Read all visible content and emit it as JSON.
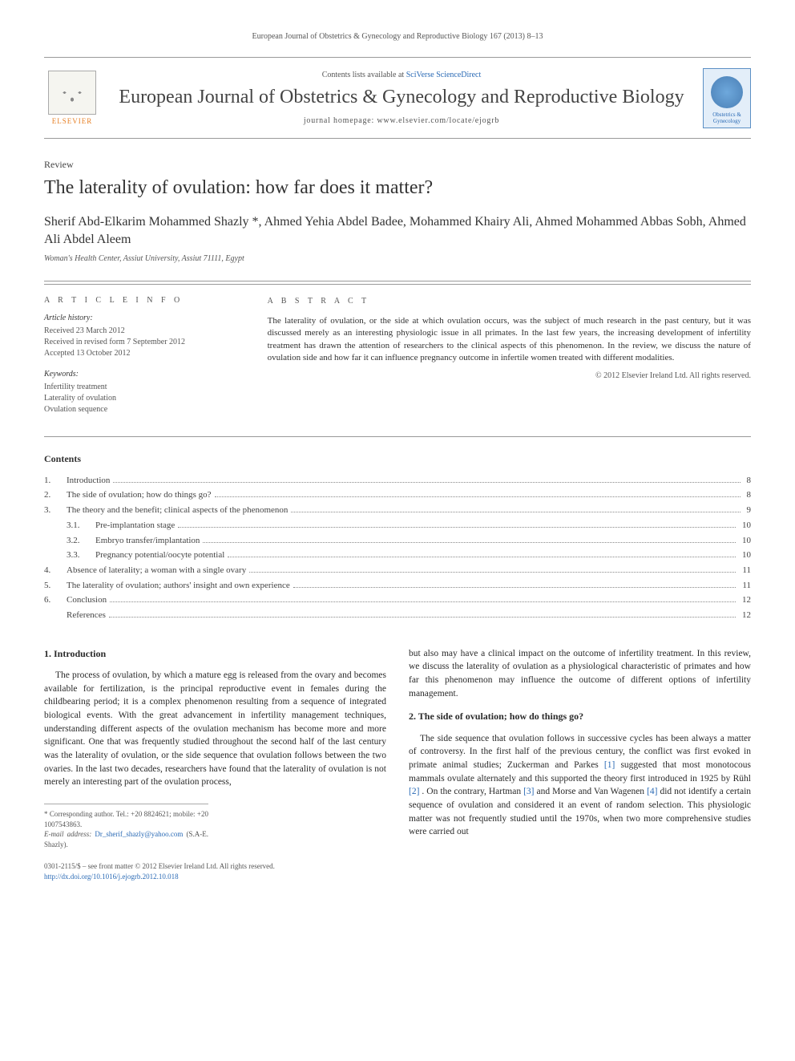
{
  "header": {
    "citation": "European Journal of Obstetrics & Gynecology and Reproductive Biology 167 (2013) 8–13"
  },
  "masthead": {
    "elsevier": "ELSEVIER",
    "contents_prefix": "Contents lists available at ",
    "contents_link": "SciVerse ScienceDirect",
    "journal_name": "European Journal of Obstetrics & Gynecology and Reproductive Biology",
    "homepage_label": "journal homepage: www.elsevier.com/locate/ejogrb",
    "side_logo_text": "Obstetrics & Gynecology"
  },
  "article": {
    "type": "Review",
    "title": "The laterality of ovulation: how far does it matter?",
    "authors": "Sherif Abd-Elkarim Mohammed Shazly *, Ahmed Yehia Abdel Badee, Mohammed Khairy Ali, Ahmed Mohammed Abbas Sobh, Ahmed Ali Abdel Aleem",
    "affiliation": "Woman's Health Center, Assiut University, Assiut 71111, Egypt"
  },
  "info": {
    "heading": "A R T I C L E   I N F O",
    "history_heading": "Article history:",
    "received": "Received 23 March 2012",
    "revised": "Received in revised form 7 September 2012",
    "accepted": "Accepted 13 October 2012",
    "keywords_heading": "Keywords:",
    "kw1": "Infertility treatment",
    "kw2": "Laterality of ovulation",
    "kw3": "Ovulation sequence"
  },
  "abstract": {
    "heading": "A B S T R A C T",
    "text": "The laterality of ovulation, or the side at which ovulation occurs, was the subject of much research in the past century, but it was discussed merely as an interesting physiologic issue in all primates. In the last few years, the increasing development of infertility treatment has drawn the attention of researchers to the clinical aspects of this phenomenon. In the review, we discuss the nature of ovulation side and how far it can influence pregnancy outcome in infertile women treated with different modalities.",
    "copyright": "© 2012 Elsevier Ireland Ltd. All rights reserved."
  },
  "contents": {
    "title": "Contents",
    "items": [
      {
        "n": "1.",
        "label": "Introduction",
        "page": "8"
      },
      {
        "n": "2.",
        "label": "The side of ovulation; how do things go?",
        "page": "8"
      },
      {
        "n": "3.",
        "label": "The theory and the benefit; clinical aspects of the phenomenon",
        "page": "9"
      },
      {
        "sub": "3.1.",
        "label": "Pre-implantation stage",
        "page": "10"
      },
      {
        "sub": "3.2.",
        "label": "Embryo transfer/implantation",
        "page": "10"
      },
      {
        "sub": "3.3.",
        "label": "Pregnancy potential/oocyte potential",
        "page": "10"
      },
      {
        "n": "4.",
        "label": "Absence of laterality; a woman with a single ovary",
        "page": "11"
      },
      {
        "n": "5.",
        "label": "The laterality of ovulation; authors' insight and own experience",
        "page": "11"
      },
      {
        "n": "6.",
        "label": "Conclusion",
        "page": "12"
      },
      {
        "ref": true,
        "label": "References",
        "page": "12"
      }
    ]
  },
  "body": {
    "s1_heading": "1. Introduction",
    "s1_p1": "The process of ovulation, by which a mature egg is released from the ovary and becomes available for fertilization, is the principal reproductive event in females during the childbearing period; it is a complex phenomenon resulting from a sequence of integrated biological events. With the great advancement in infertility management techniques, understanding different aspects of the ovulation mechanism has become more and more significant. One that was frequently studied throughout the second half of the last century was the laterality of ovulation, or the side sequence that ovulation follows between the two ovaries. In the last two decades, researchers have found that the laterality of ovulation is not merely an interesting part of the ovulation process,",
    "s1_p2": "but also may have a clinical impact on the outcome of infertility treatment. In this review, we discuss the laterality of ovulation as a physiological characteristic of primates and how far this phenomenon may influence the outcome of different options of infertility management.",
    "s2_heading": "2. The side of ovulation; how do things go?",
    "s2_p1a": "The side sequence that ovulation follows in successive cycles has been always a matter of controversy. In the first half of the previous century, the conflict was first evoked in primate animal studies; Zuckerman and Parkes ",
    "s2_ref1": "[1]",
    "s2_p1b": " suggested that most monotocous mammals ovulate alternately and this supported the theory first introduced in 1925 by Rühl ",
    "s2_ref2": "[2]",
    "s2_p1c": ". On the contrary, Hartman ",
    "s2_ref3": "[3]",
    "s2_p1d": " and Morse and Van Wagenen ",
    "s2_ref4": "[4]",
    "s2_p1e": " did not identify a certain sequence of ovulation and considered it an event of random selection. This physiologic matter was not frequently studied until the 1970s, when two more comprehensive studies were carried out"
  },
  "footnotes": {
    "corr": "* Corresponding author. Tel.: +20 8824621; mobile: +20 1007543863.",
    "email_label": "E-mail address: ",
    "email": "Dr_sherif_shazly@yahoo.com",
    "email_suffix": " (S.A-E. Shazly)."
  },
  "footer": {
    "line1": "0301-2115/$ – see front matter © 2012 Elsevier Ireland Ltd. All rights reserved.",
    "doi": "http://dx.doi.org/10.1016/j.ejogrb.2012.10.018"
  },
  "colors": {
    "link": "#2a6ab5",
    "elsevier_orange": "#e67e22",
    "text": "#333333",
    "muted": "#555555",
    "border": "#999999"
  }
}
